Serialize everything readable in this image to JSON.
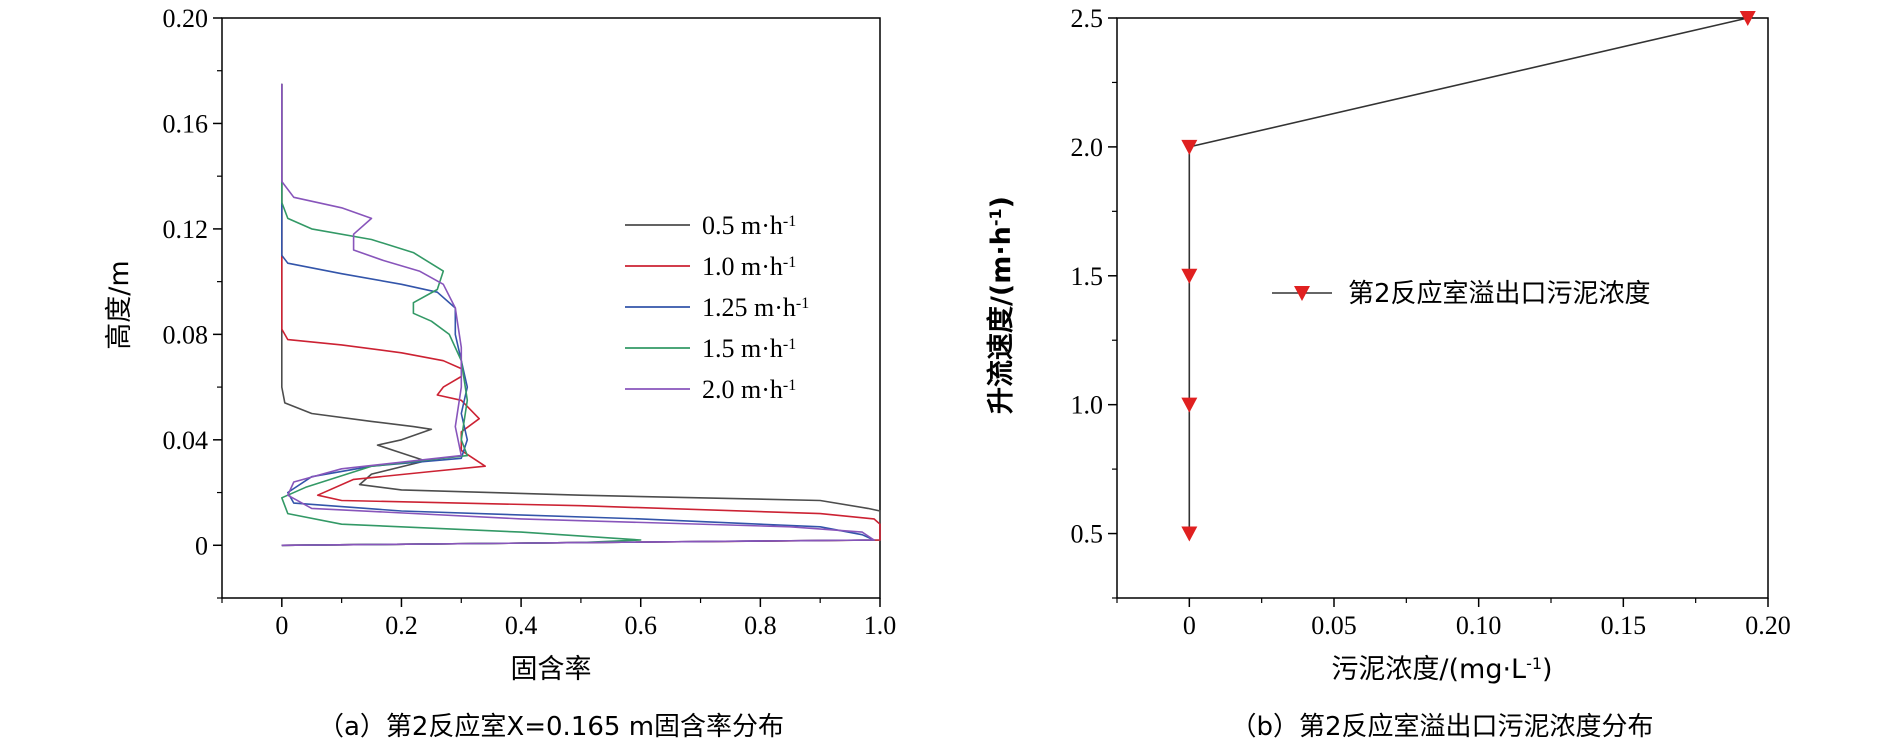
{
  "chart_data": [
    {
      "type": "line",
      "caption": "（a）第2反应室X=0.165 m固含率分布",
      "xlabel": "固含率",
      "ylabel": "高度/m",
      "xlim": [
        -0.1,
        1.0
      ],
      "ylim": [
        -0.02,
        0.2
      ],
      "xticks": [
        "0",
        "0.2",
        "0.4",
        "0.6",
        "0.8",
        "1.0"
      ],
      "yticks": [
        "0",
        "0.04",
        "0.08",
        "0.12",
        "0.16",
        "0.20"
      ],
      "legend_position": "center-right",
      "series": [
        {
          "name": "0.5 m·h-1",
          "color": "#4d4d4d",
          "points": [
            [
              0.0,
              0.175
            ],
            [
              0.0,
              0.06
            ],
            [
              0.005,
              0.054
            ],
            [
              0.05,
              0.05
            ],
            [
              0.15,
              0.047
            ],
            [
              0.22,
              0.045
            ],
            [
              0.25,
              0.044
            ],
            [
              0.2,
              0.04
            ],
            [
              0.16,
              0.038
            ],
            [
              0.2,
              0.035
            ],
            [
              0.24,
              0.032
            ],
            [
              0.15,
              0.027
            ],
            [
              0.13,
              0.023
            ],
            [
              0.2,
              0.021
            ],
            [
              0.5,
              0.019
            ],
            [
              0.9,
              0.017
            ],
            [
              0.98,
              0.014
            ],
            [
              1.0,
              0.013
            ],
            [
              1.0,
              0.002
            ],
            [
              0.5,
              0.001
            ],
            [
              0.0,
              0.0
            ]
          ]
        },
        {
          "name": "1.0 m·h-1",
          "color": "#cc2233",
          "points": [
            [
              0.0,
              0.175
            ],
            [
              0.0,
              0.082
            ],
            [
              0.01,
              0.078
            ],
            [
              0.1,
              0.076
            ],
            [
              0.2,
              0.073
            ],
            [
              0.27,
              0.07
            ],
            [
              0.3,
              0.067
            ],
            [
              0.3,
              0.064
            ],
            [
              0.27,
              0.06
            ],
            [
              0.26,
              0.057
            ],
            [
              0.3,
              0.055
            ],
            [
              0.33,
              0.048
            ],
            [
              0.3,
              0.043
            ],
            [
              0.3,
              0.036
            ],
            [
              0.34,
              0.03
            ],
            [
              0.25,
              0.028
            ],
            [
              0.12,
              0.025
            ],
            [
              0.06,
              0.019
            ],
            [
              0.1,
              0.017
            ],
            [
              0.5,
              0.015
            ],
            [
              0.9,
              0.012
            ],
            [
              0.99,
              0.01
            ],
            [
              1.0,
              0.008
            ],
            [
              1.0,
              0.002
            ],
            [
              0.5,
              0.001
            ],
            [
              0.0,
              0.0
            ]
          ]
        },
        {
          "name": "1.25 m·h-1",
          "color": "#3355aa",
          "points": [
            [
              0.0,
              0.175
            ],
            [
              0.0,
              0.11
            ],
            [
              0.01,
              0.107
            ],
            [
              0.1,
              0.103
            ],
            [
              0.2,
              0.099
            ],
            [
              0.26,
              0.096
            ],
            [
              0.29,
              0.09
            ],
            [
              0.29,
              0.08
            ],
            [
              0.3,
              0.07
            ],
            [
              0.31,
              0.06
            ],
            [
              0.3,
              0.05
            ],
            [
              0.31,
              0.04
            ],
            [
              0.3,
              0.033
            ],
            [
              0.15,
              0.03
            ],
            [
              0.05,
              0.026
            ],
            [
              0.01,
              0.02
            ],
            [
              0.02,
              0.016
            ],
            [
              0.2,
              0.013
            ],
            [
              0.6,
              0.01
            ],
            [
              0.9,
              0.007
            ],
            [
              0.97,
              0.004
            ],
            [
              0.99,
              0.002
            ],
            [
              0.5,
              0.001
            ],
            [
              0.0,
              0.0
            ]
          ]
        },
        {
          "name": "1.5 m·h-1",
          "color": "#339966",
          "points": [
            [
              0.0,
              0.175
            ],
            [
              0.0,
              0.13
            ],
            [
              0.01,
              0.124
            ],
            [
              0.05,
              0.12
            ],
            [
              0.15,
              0.116
            ],
            [
              0.22,
              0.111
            ],
            [
              0.27,
              0.104
            ],
            [
              0.26,
              0.097
            ],
            [
              0.22,
              0.092
            ],
            [
              0.22,
              0.088
            ],
            [
              0.25,
              0.085
            ],
            [
              0.28,
              0.08
            ],
            [
              0.3,
              0.07
            ],
            [
              0.31,
              0.055
            ],
            [
              0.3,
              0.04
            ],
            [
              0.31,
              0.034
            ],
            [
              0.15,
              0.03
            ],
            [
              0.04,
              0.022
            ],
            [
              0.0,
              0.018
            ],
            [
              0.01,
              0.012
            ],
            [
              0.1,
              0.008
            ],
            [
              0.4,
              0.005
            ],
            [
              0.6,
              0.002
            ],
            [
              0.5,
              0.001
            ],
            [
              0.0,
              0.0
            ]
          ]
        },
        {
          "name": "2.0 m·h-1",
          "color": "#8855bb",
          "points": [
            [
              0.0,
              0.175
            ],
            [
              0.0,
              0.138
            ],
            [
              0.02,
              0.132
            ],
            [
              0.1,
              0.128
            ],
            [
              0.15,
              0.124
            ],
            [
              0.12,
              0.118
            ],
            [
              0.12,
              0.112
            ],
            [
              0.17,
              0.108
            ],
            [
              0.23,
              0.104
            ],
            [
              0.27,
              0.099
            ],
            [
              0.29,
              0.09
            ],
            [
              0.3,
              0.075
            ],
            [
              0.3,
              0.06
            ],
            [
              0.29,
              0.045
            ],
            [
              0.3,
              0.034
            ],
            [
              0.1,
              0.029
            ],
            [
              0.02,
              0.024
            ],
            [
              0.01,
              0.019
            ],
            [
              0.05,
              0.014
            ],
            [
              0.4,
              0.01
            ],
            [
              0.85,
              0.007
            ],
            [
              0.97,
              0.005
            ],
            [
              0.99,
              0.002
            ],
            [
              0.5,
              0.001
            ],
            [
              0.0,
              0.0
            ]
          ]
        }
      ]
    },
    {
      "type": "line",
      "caption": "（b）第2反应室溢出口污泥浓度分布",
      "xlabel": "污泥浓度/(mg·L-1)",
      "ylabel": "升流速度/(m·h-1)",
      "xlim": [
        -0.025,
        0.2
      ],
      "ylim": [
        0.25,
        2.5
      ],
      "xticks": [
        "0",
        "0.05",
        "0.10",
        "0.15",
        "0.20"
      ],
      "yticks": [
        "0.5",
        "1.0",
        "1.5",
        "2.0",
        "2.5"
      ],
      "legend_position": "center",
      "series": [
        {
          "name": "第2反应室溢出口污泥浓度",
          "color": "#e02020",
          "line_color": "#333333",
          "points": [
            [
              0.0,
              0.5
            ],
            [
              0.0,
              1.0
            ],
            [
              0.0,
              1.5
            ],
            [
              0.0,
              2.0
            ],
            [
              0.193,
              2.5
            ]
          ]
        }
      ]
    }
  ]
}
